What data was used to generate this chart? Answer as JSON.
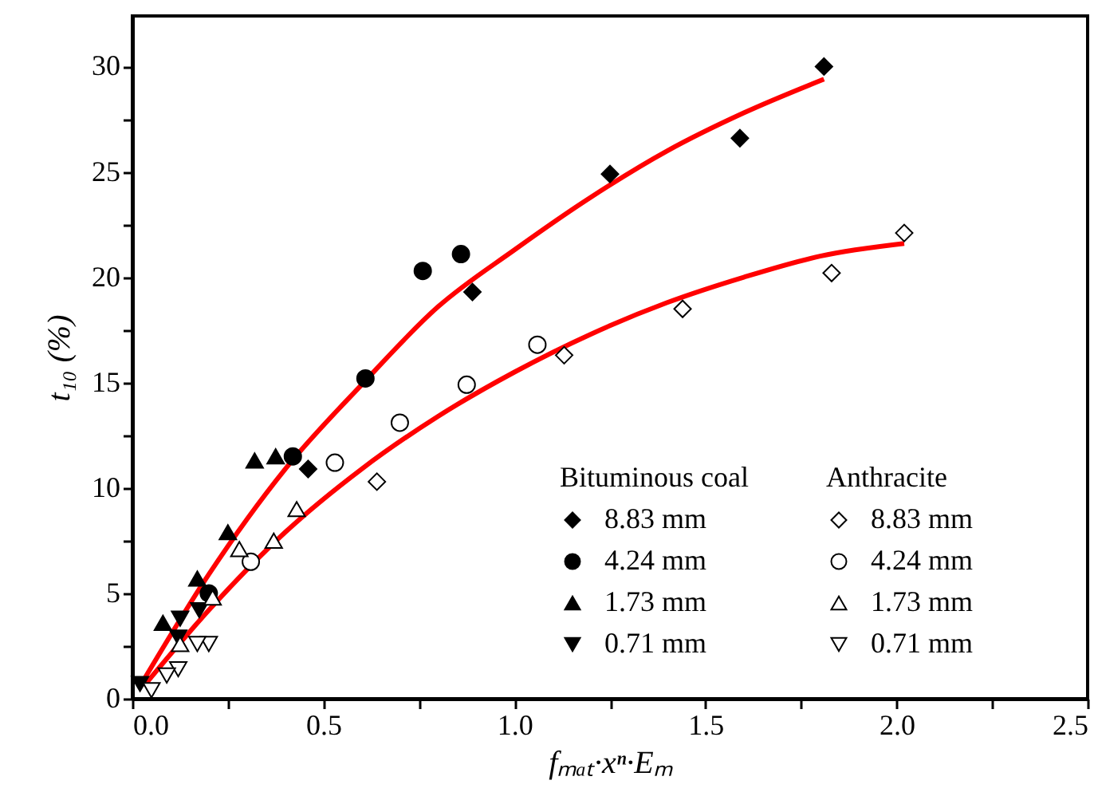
{
  "chart_data": {
    "type": "scatter",
    "xlabel": "fₘₐₜ·xⁿ·Eₘ",
    "ylabel": "t₁₀ (%)",
    "xlim": [
      0,
      2.5
    ],
    "ylim": [
      0,
      32.4
    ],
    "xticks": [
      {
        "value": 0,
        "label": "0.0"
      },
      {
        "value": 0.25,
        "label": null
      },
      {
        "value": 0.5,
        "label": "0.5"
      },
      {
        "value": 0.75,
        "label": null
      },
      {
        "value": 1,
        "label": "1.0"
      },
      {
        "value": 1.25,
        "label": null
      },
      {
        "value": 1.5,
        "label": "1.5"
      },
      {
        "value": 1.75,
        "label": null
      },
      {
        "value": 2,
        "label": "2.0"
      },
      {
        "value": 2.25,
        "label": null
      },
      {
        "value": 2.5,
        "label": "2.5"
      }
    ],
    "yticks": [
      0,
      {
        "value": 2.5,
        "label": null
      },
      5,
      {
        "value": 7.5,
        "label": null
      },
      10,
      {
        "value": 12.5,
        "label": null
      },
      15,
      {
        "value": 17.5,
        "label": null
      },
      20,
      {
        "value": 22.5,
        "label": null
      },
      25,
      {
        "value": 27.5,
        "label": null
      },
      30
    ],
    "grid": false,
    "legend": "bottom right",
    "annotations": [
      "Bituminous coal",
      "Anthracite"
    ],
    "series": [
      {
        "type": "line",
        "color": "#ff0000",
        "x": [
          0.03,
          0.2,
          0.4,
          0.6,
          0.8,
          1.0,
          1.2,
          1.4,
          1.6,
          1.81
        ],
        "values": [
          0.9,
          5.9,
          10.9,
          14.9,
          18.6,
          21.3,
          23.8,
          26.0,
          27.8,
          29.4
        ]
      },
      {
        "type": "line",
        "color": "#ff0000",
        "x": [
          0.03,
          0.2,
          0.4,
          0.6,
          0.8,
          1.0,
          1.2,
          1.4,
          1.6,
          1.8,
          2.02
        ],
        "values": [
          0.6,
          4.2,
          7.9,
          10.9,
          13.4,
          15.5,
          17.3,
          18.8,
          20.0,
          21.0,
          21.6
        ]
      },
      {
        "name": "8.83 mm",
        "color": "#000000",
        "marker": "diamond",
        "x": [
          1.81,
          1.59,
          1.25,
          0.89,
          0.46
        ],
        "values": [
          30.0,
          26.6,
          24.9,
          19.3,
          10.9
        ]
      },
      {
        "name": "4.24 mm",
        "color": "#000000",
        "marker": "circle",
        "x": [
          0.86,
          0.76,
          0.61,
          0.42,
          0.2
        ],
        "values": [
          21.1,
          20.3,
          15.2,
          11.5,
          5.0
        ]
      },
      {
        "name": "1.73 mm",
        "color": "#000000",
        "marker": "triangle",
        "x": [
          0.32,
          0.375,
          0.25,
          0.17,
          0.08
        ],
        "values": [
          11.3,
          11.5,
          7.9,
          5.7,
          3.6
        ]
      },
      {
        "name": "0.71 mm",
        "color": "#000000",
        "marker": "triangle_down",
        "x": [
          0.175,
          0.125,
          0.12,
          0.02
        ],
        "values": [
          4.2,
          3.8,
          2.9,
          0.7
        ]
      },
      {
        "name": "8.83 mm",
        "color": "#000000",
        "marker": "diamond_open",
        "x": [
          2.02,
          1.83,
          1.44,
          1.13,
          0.64
        ],
        "values": [
          22.1,
          20.2,
          18.5,
          16.3,
          10.3
        ]
      },
      {
        "name": "4.24 mm",
        "color": "#000000",
        "marker": "circle_open",
        "x": [
          1.06,
          0.875,
          0.7,
          0.53,
          0.31
        ],
        "values": [
          16.8,
          14.9,
          13.1,
          11.2,
          6.5
        ]
      },
      {
        "name": "1.73 mm",
        "color": "#000000",
        "marker": "triangle_open",
        "x": [
          0.43,
          0.37,
          0.28,
          0.21,
          0.125
        ],
        "values": [
          9.0,
          7.5,
          7.1,
          4.8,
          2.6
        ]
      },
      {
        "name": "0.71 mm",
        "color": "#000000",
        "marker": "triangle_down_open",
        "x": [
          0.2,
          0.17,
          0.12,
          0.09,
          0.05
        ],
        "values": [
          2.6,
          2.6,
          1.4,
          1.1,
          0.4
        ]
      }
    ]
  }
}
